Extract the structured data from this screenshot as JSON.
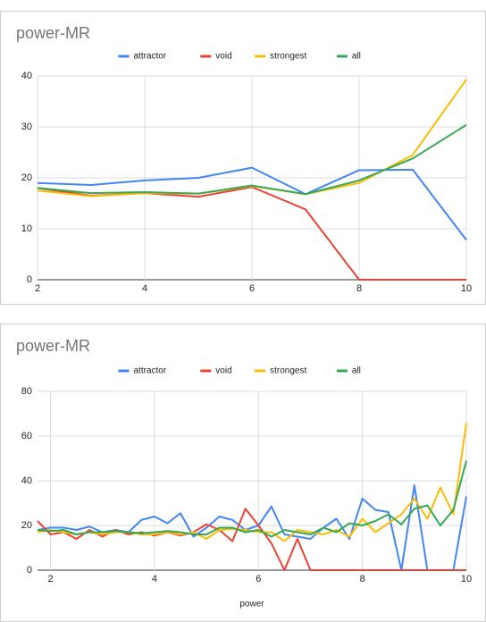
{
  "chart_data": [
    {
      "type": "line",
      "title": "power-MR",
      "legend": "top",
      "x": [
        2,
        3,
        4,
        5,
        6,
        7,
        8,
        9,
        10
      ],
      "xlim": [
        2,
        10
      ],
      "xticks": [
        2,
        4,
        6,
        8,
        10
      ],
      "ylim": [
        0,
        40
      ],
      "yticks": [
        0,
        10,
        20,
        30,
        40
      ],
      "grid": true,
      "series": [
        {
          "name": "attractor",
          "color": "#4285f4",
          "values": [
            19,
            18.6,
            19.5,
            20,
            22,
            16.8,
            21.5,
            21.6,
            7.8
          ]
        },
        {
          "name": "void",
          "color": "#ea4335",
          "values": [
            18,
            16.5,
            17,
            16.3,
            18.2,
            13.8,
            0,
            0,
            0
          ]
        },
        {
          "name": "strongest",
          "color": "#fbbc04",
          "values": [
            17.5,
            16.4,
            17,
            16.9,
            18.4,
            16.8,
            19,
            24.5,
            39.3
          ]
        },
        {
          "name": "all",
          "color": "#34a853",
          "values": [
            18,
            17,
            17.2,
            16.9,
            18.5,
            16.8,
            19.5,
            23.8,
            30.4
          ]
        }
      ]
    },
    {
      "type": "line",
      "title": "power-MR",
      "legend": "top",
      "xlabel": "power",
      "x": [
        1.75,
        2,
        2.25,
        2.5,
        2.75,
        3,
        3.25,
        3.5,
        3.75,
        4,
        4.25,
        4.5,
        4.75,
        5,
        5.25,
        5.5,
        5.75,
        6,
        6.25,
        6.5,
        6.75,
        7,
        7.25,
        7.5,
        7.75,
        8,
        8.25,
        8.5,
        8.75,
        9,
        9.25,
        9.5,
        9.75,
        10
      ],
      "xlim": [
        1.75,
        10
      ],
      "xticks": [
        2,
        4,
        6,
        8,
        10
      ],
      "ylim": [
        0,
        80
      ],
      "yticks": [
        0,
        20,
        40,
        60,
        80
      ],
      "grid": true,
      "series": [
        {
          "name": "attractor",
          "color": "#4285f4",
          "values": [
            18,
            19,
            19,
            18,
            19.5,
            17,
            18,
            17,
            22.5,
            24,
            21,
            25.5,
            15,
            19,
            24,
            22.5,
            18,
            20,
            28.5,
            16,
            15,
            14,
            19,
            23,
            14,
            32,
            27,
            26,
            0,
            38,
            0,
            0,
            0,
            33
          ]
        },
        {
          "name": "void",
          "color": "#ea4335",
          "values": [
            22,
            16,
            17,
            14,
            18,
            15,
            18,
            16,
            17,
            15.5,
            17,
            15.5,
            17,
            20.5,
            18,
            13,
            27.5,
            20,
            12,
            0,
            14,
            0,
            0,
            0,
            0,
            0,
            0,
            0,
            0,
            0,
            0,
            0,
            0,
            0
          ]
        },
        {
          "name": "strongest",
          "color": "#fbbc04",
          "values": [
            17,
            18,
            17,
            16,
            17,
            16,
            17,
            17,
            16,
            16,
            17,
            16,
            17,
            14,
            18,
            18.5,
            18,
            17,
            17,
            13,
            18,
            17,
            16,
            18,
            15,
            23,
            17,
            21,
            25,
            32,
            23,
            37,
            25,
            66
          ]
        },
        {
          "name": "all",
          "color": "#34a853",
          "values": [
            18,
            17.5,
            18,
            16,
            17,
            17,
            17.5,
            17,
            16.5,
            17,
            17.5,
            17,
            16,
            16,
            19,
            19,
            17,
            18,
            15,
            18,
            17,
            16,
            19,
            17,
            21,
            20,
            22,
            25,
            20.5,
            27.5,
            29,
            20,
            27,
            49
          ]
        }
      ]
    }
  ]
}
